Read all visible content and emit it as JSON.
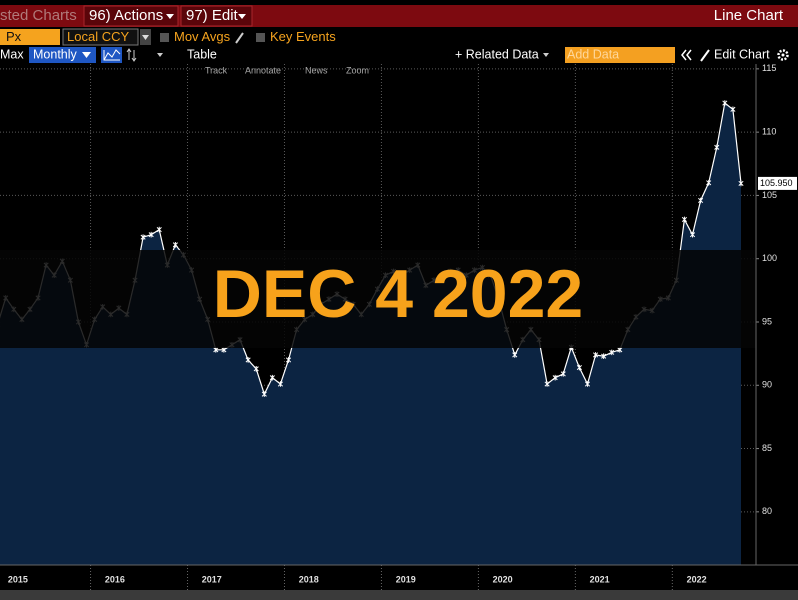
{
  "toolbar": {
    "title_fragment": "sted Charts",
    "actions": "96) Actions",
    "edit": "97) Edit",
    "view_name": "Line Chart",
    "security_field": "Px",
    "currency": "Local CCY",
    "mov_avgs": "Mov Avgs",
    "key_events": "Key Events",
    "range": "Max",
    "frequency": "Monthly",
    "table": "Table",
    "related_data": "+ Related Data",
    "add_data": "Add Data",
    "edit_chart": "Edit Chart",
    "chart_tools": [
      "Track",
      "Annotate",
      "News",
      "Zoom"
    ]
  },
  "chart_data": {
    "type": "line",
    "categories": [
      null,
      null,
      null,
      "2015",
      null,
      null,
      null,
      null,
      null,
      null,
      null,
      null,
      null,
      null,
      null,
      "2016",
      null,
      null,
      null,
      null,
      null,
      null,
      null,
      null,
      null,
      null,
      null,
      "2017",
      null,
      null,
      null,
      null,
      null,
      null,
      null,
      null,
      null,
      null,
      null,
      "2018",
      null,
      null,
      null,
      null,
      null,
      null,
      null,
      null,
      null,
      null,
      null,
      "2019",
      null,
      null,
      null,
      null,
      null,
      null,
      null,
      null,
      null,
      null,
      null,
      "2020",
      null,
      null,
      null,
      null,
      null,
      null,
      null,
      null,
      null,
      null,
      null,
      "2021",
      null,
      null,
      null,
      null,
      null,
      null,
      null,
      null,
      null,
      null,
      null,
      "2022",
      null,
      null,
      null,
      null,
      null
    ],
    "values": [
      94.8,
      96.9,
      96,
      95.2,
      96,
      96.9,
      99.5,
      98.7,
      99.8,
      98.3,
      95,
      93.2,
      95.2,
      96.2,
      95.6,
      96.1,
      95.6,
      98.3,
      101.7,
      101.9,
      102.3,
      99.5,
      101.1,
      100.3,
      99.1,
      96.8,
      95.2,
      92.8,
      92.8,
      93.2,
      93.6,
      92,
      91.3,
      89.3,
      90.6,
      90.1,
      92,
      94.4,
      95.2,
      95.6,
      96.4,
      96.8,
      97.2,
      96.8,
      96.4,
      95.6,
      96.4,
      97.6,
      98.7,
      99,
      98.7,
      99.1,
      99.5,
      97.9,
      98.3,
      98.7,
      99,
      99.1,
      98.7,
      99.1,
      99.3,
      98.7,
      96.8,
      94.4,
      92.4,
      93.6,
      94.4,
      93.6,
      90.1,
      90.6,
      90.9,
      93,
      91.4,
      90.1,
      92.4,
      92.3,
      92.6,
      92.8,
      94.4,
      95.4,
      96,
      95.9,
      96.8,
      96.9,
      98.3,
      103.1,
      101.9,
      104.6,
      106,
      108.8,
      112.3,
      111.8,
      105.95
    ],
    "color": "#ffffff",
    "area_color": "#0c2442",
    "ylim": [
      75.8,
      115.7
    ],
    "yticks": [
      80,
      85,
      90,
      95,
      100,
      105,
      110,
      115
    ],
    "grid": true,
    "annotations": [
      {
        "value": 105.95,
        "label": "105.950"
      }
    ],
    "overlay_text": "DEC 4 2022"
  }
}
